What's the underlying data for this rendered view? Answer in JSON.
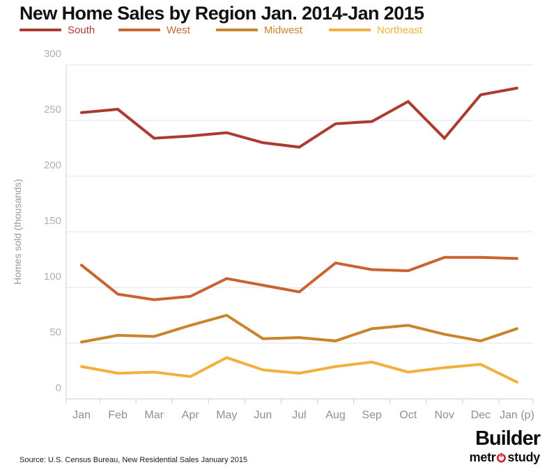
{
  "title": "New Home Sales by Region Jan. 2014-Jan 2015",
  "footer": {
    "source": "Source: U.S. Census Bureau, New Residential Sales January 2015"
  },
  "logo": {
    "builder": "Builder",
    "metro_pre": "metr",
    "metro_post": "study",
    "power_color": "#c9252c"
  },
  "theme": {
    "grid_color": "#e3e3e3",
    "axis_color": "#cccccc",
    "y_tick_label_color": "#b0b0b0",
    "x_tick_label_color": "#8f8f8f",
    "axis_title_color": "#9a9a9a",
    "title_color": "#111111",
    "background": "#ffffff"
  },
  "chart_data": {
    "type": "line",
    "title": "New Home Sales by Region Jan. 2014-Jan 2015",
    "categories": [
      "Jan",
      "Feb",
      "Mar",
      "Apr",
      "May",
      "Jun",
      "Jul",
      "Aug",
      "Sep",
      "Oct",
      "Nov",
      "Dec",
      "Jan (p)"
    ],
    "series": [
      {
        "name": "South",
        "color": "#ae3a2f",
        "values": [
          257,
          260,
          234,
          236,
          239,
          230,
          226,
          247,
          249,
          267,
          234,
          273,
          279
        ]
      },
      {
        "name": "West",
        "color": "#c96331",
        "values": [
          120,
          94,
          89,
          92,
          108,
          102,
          96,
          122,
          116,
          115,
          127,
          127,
          126
        ]
      },
      {
        "name": "Midwest",
        "color": "#c8852c",
        "values": [
          51,
          57,
          56,
          66,
          75,
          54,
          55,
          52,
          63,
          66,
          58,
          52,
          63
        ]
      },
      {
        "name": "Northeast",
        "color": "#f1b13c",
        "values": [
          29,
          23,
          24,
          20,
          37,
          26,
          23,
          29,
          33,
          24,
          28,
          31,
          15
        ]
      }
    ],
    "xlabel": "",
    "ylabel": "Homes sold (thousands)",
    "ylim": [
      0,
      300
    ],
    "yticks": [
      0,
      50,
      100,
      150,
      200,
      250,
      300
    ],
    "grid": true,
    "legend_position": "top",
    "tick_label_note": "y labels sit above their gridlines; x ticks sit between month labels"
  }
}
